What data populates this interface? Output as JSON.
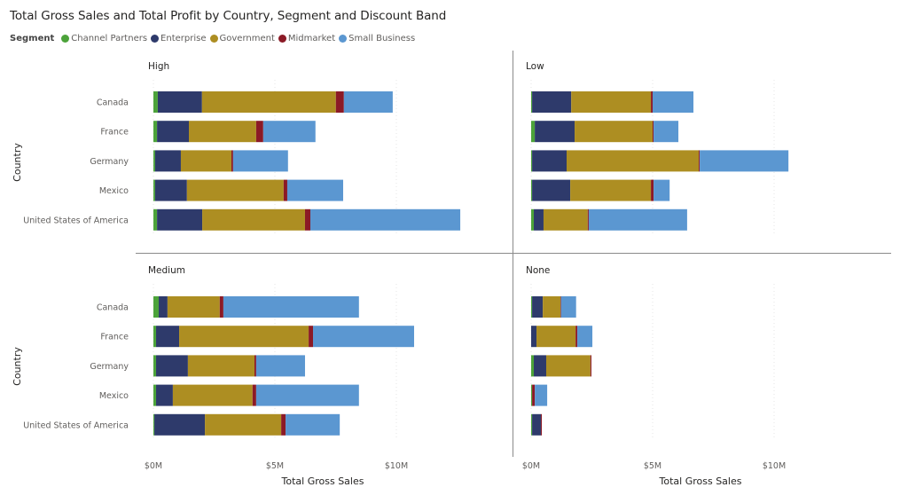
{
  "chart_data": {
    "type": "bar",
    "orientation": "horizontal",
    "stacked": true,
    "title": "Total Gross Sales and Total Profit by Country, Segment and Discount Band",
    "legend": {
      "title": "Segment",
      "placement": "top-left",
      "entries": [
        {
          "name": "Channel Partners",
          "color": "#4CA33A"
        },
        {
          "name": "Enterprise",
          "color": "#2E3A6B"
        },
        {
          "name": "Government",
          "color": "#AD8E22"
        },
        {
          "name": "Midmarket",
          "color": "#8B1A26"
        },
        {
          "name": "Small Business",
          "color": "#5B97D1"
        }
      ]
    },
    "xlabel": "Total Gross Sales",
    "ylabel": "Country",
    "xlim": [
      0,
      15
    ],
    "x_unit": "$M",
    "xticks": [
      {
        "value": 0,
        "label": "$0M"
      },
      {
        "value": 5,
        "label": "$5M"
      },
      {
        "value": 10,
        "label": "$10M"
      }
    ],
    "grid": true,
    "categories": [
      "Canada",
      "France",
      "Germany",
      "Mexico",
      "United States of America"
    ],
    "panels": [
      {
        "name": "High",
        "series": [
          {
            "name": "Channel Partners",
            "values": [
              0.18,
              0.15,
              0.07,
              0.07,
              0.15
            ]
          },
          {
            "name": "Enterprise",
            "values": [
              1.82,
              1.31,
              1.06,
              1.31,
              1.86
            ]
          },
          {
            "name": "Government",
            "values": [
              5.51,
              2.77,
              2.08,
              3.98,
              4.23
            ]
          },
          {
            "name": "Midmarket",
            "values": [
              0.33,
              0.29,
              0.07,
              0.15,
              0.22
            ]
          },
          {
            "name": "Small Business",
            "values": [
              2.01,
              2.15,
              2.26,
              2.3,
              6.17
            ]
          }
        ]
      },
      {
        "name": "Low",
        "series": [
          {
            "name": "Channel Partners",
            "values": [
              0.04,
              0.15,
              0.04,
              0.04,
              0.11
            ]
          },
          {
            "name": "Enterprise",
            "values": [
              1.61,
              1.64,
              1.42,
              1.57,
              0.4
            ]
          },
          {
            "name": "Government",
            "values": [
              3.28,
              3.21,
              5.44,
              3.32,
              1.82
            ]
          },
          {
            "name": "Midmarket",
            "values": [
              0.07,
              0.04,
              0.04,
              0.11,
              0.04
            ]
          },
          {
            "name": "Small Business",
            "values": [
              1.68,
              1.02,
              3.65,
              0.66,
              4.05
            ]
          }
        ]
      },
      {
        "name": "Medium",
        "series": [
          {
            "name": "Channel Partners",
            "values": [
              0.22,
              0.11,
              0.11,
              0.11,
              0.04
            ]
          },
          {
            "name": "Enterprise",
            "values": [
              0.36,
              0.95,
              1.31,
              0.69,
              2.08
            ]
          },
          {
            "name": "Government",
            "values": [
              2.15,
              5.33,
              2.74,
              3.28,
              3.14
            ]
          },
          {
            "name": "Midmarket",
            "values": [
              0.15,
              0.18,
              0.07,
              0.15,
              0.18
            ]
          },
          {
            "name": "Small Business",
            "values": [
              5.58,
              4.16,
              2.01,
              4.23,
              2.23
            ]
          }
        ]
      },
      {
        "name": "None",
        "series": [
          {
            "name": "Channel Partners",
            "values": [
              0.04,
              0.0,
              0.11,
              0.04,
              0.04
            ]
          },
          {
            "name": "Enterprise",
            "values": [
              0.44,
              0.22,
              0.51,
              0.0,
              0.36
            ]
          },
          {
            "name": "Government",
            "values": [
              0.73,
              1.61,
              1.82,
              0.0,
              0.0
            ]
          },
          {
            "name": "Midmarket",
            "values": [
              0.02,
              0.07,
              0.04,
              0.11,
              0.04
            ]
          },
          {
            "name": "Small Business",
            "values": [
              0.62,
              0.62,
              0.0,
              0.51,
              0.0
            ]
          }
        ]
      }
    ]
  }
}
